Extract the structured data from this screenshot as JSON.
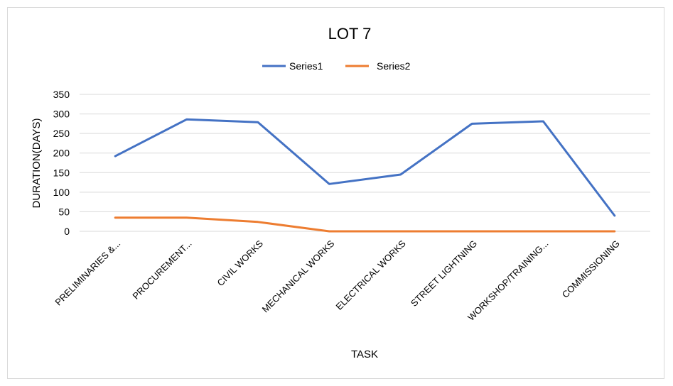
{
  "chart_data": {
    "type": "line",
    "title": "LOT 7",
    "xlabel": "TASK",
    "ylabel": "DURATION(DAYS)",
    "ylim": [
      0,
      350
    ],
    "yticks": [
      0,
      50,
      100,
      150,
      200,
      250,
      300,
      350
    ],
    "grid": true,
    "legend_position": "top",
    "categories": [
      "PRELIMINARIES &...",
      "PROCUREMENT...",
      "CIVIL WORKS",
      "MECHANICAL WORKS",
      "ELECTRICAL WORKS",
      "STREET LIGHTNING",
      "WORKSHOP/TRAINING...",
      "COMMISSIONING"
    ],
    "series": [
      {
        "name": "Series1",
        "color": "#4472c4",
        "values": [
          192,
          286,
          279,
          121,
          145,
          275,
          281,
          40
        ]
      },
      {
        "name": "Series2",
        "color": "#ed7d31",
        "values": [
          35,
          35,
          24,
          0,
          0,
          0,
          0,
          0
        ]
      }
    ]
  }
}
